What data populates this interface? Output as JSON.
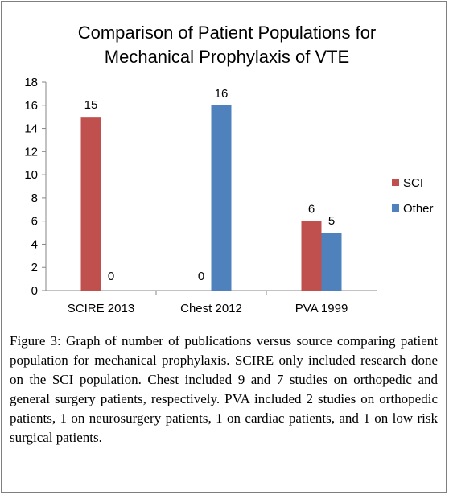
{
  "chart_data": {
    "type": "bar",
    "title": "Comparison of Patient Populations for Mechanical Prophylaxis of VTE",
    "title_lines": [
      "Comparison of Patient Populations for",
      "Mechanical Prophylaxis of VTE"
    ],
    "categories": [
      "SCIRE 2013",
      "Chest 2012",
      "PVA 1999"
    ],
    "series": [
      {
        "name": "SCI",
        "values": [
          15,
          0,
          6
        ],
        "color": "#c0504d"
      },
      {
        "name": "Other",
        "values": [
          0,
          16,
          5
        ],
        "color": "#4f81bd"
      }
    ],
    "ylim": [
      0,
      18
    ],
    "yticks": [
      "0",
      "2",
      "4",
      "6",
      "8",
      "10",
      "12",
      "14",
      "16",
      "18"
    ],
    "legend_position": "right",
    "grid": false
  },
  "caption": {
    "label": "Figure 3:",
    "text": " Graph of number of publications versus source comparing patient population for mechanical prophylaxis. SCIRE only included research done on the SCI population. Chest included 9 and 7 studies on orthopedic and general surgery patients, respectively. PVA included 2 studies on orthopedic patients, 1 on neurosurgery patients, 1 on cardiac patients, and 1 on low risk surgical patients."
  }
}
